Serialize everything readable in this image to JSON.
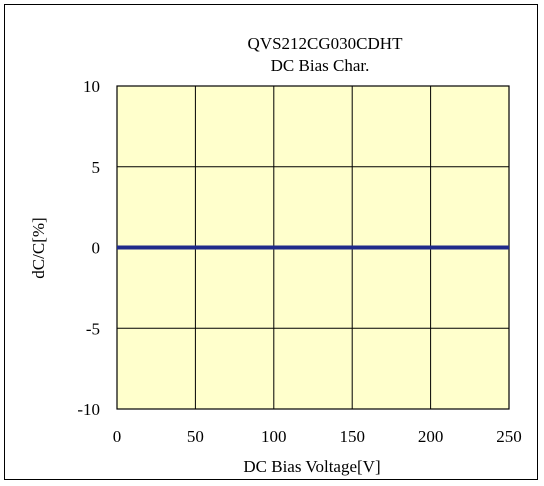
{
  "chart_data": {
    "type": "line",
    "title_line1": "QVS212CG030CDHT",
    "title_line2": "DC Bias Char.",
    "xlabel": "DC Bias Voltage[V]",
    "ylabel": "dC/C[%]",
    "xlim": [
      0,
      250
    ],
    "ylim": [
      -10,
      10
    ],
    "x_ticks": [
      "0",
      "50",
      "100",
      "150",
      "200",
      "250"
    ],
    "y_ticks": [
      "10",
      "5",
      "0",
      "-5",
      "-10"
    ],
    "grid": true,
    "series": [
      {
        "x": [
          0,
          50,
          100,
          150,
          200,
          250
        ],
        "y": [
          0,
          0,
          0,
          0,
          0,
          0
        ],
        "color": "#1f2a8a"
      }
    ],
    "plot_background": "#ffffcc"
  }
}
